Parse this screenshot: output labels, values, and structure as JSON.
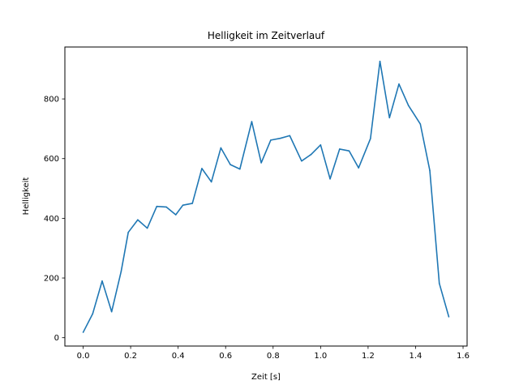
{
  "colors": {
    "line": "#1f77b4",
    "axes": "#000000",
    "background": "#ffffff"
  },
  "chart_data": {
    "type": "line",
    "title": "Helligkeit im Zeitverlauf",
    "xlabel": "Zeit [s]",
    "ylabel": "Helligkeit",
    "xlim": [
      -0.077,
      1.617
    ],
    "ylim": [
      -28,
      974
    ],
    "grid": false,
    "legend": "none",
    "xticks": [
      0.0,
      0.2,
      0.4,
      0.6,
      0.8,
      1.0,
      1.2,
      1.4,
      1.6
    ],
    "xtick_labels": [
      "0.0",
      "0.2",
      "0.4",
      "0.6",
      "0.8",
      "1.0",
      "1.2",
      "1.4",
      "1.6"
    ],
    "yticks": [
      0,
      200,
      400,
      600,
      800
    ],
    "ytick_labels": [
      "0",
      "200",
      "400",
      "600",
      "800"
    ],
    "series": [
      {
        "x": [
          0.0,
          0.04,
          0.08,
          0.12,
          0.16,
          0.19,
          0.23,
          0.27,
          0.31,
          0.35,
          0.39,
          0.42,
          0.46,
          0.5,
          0.54,
          0.58,
          0.62,
          0.66,
          0.71,
          0.75,
          0.79,
          0.83,
          0.87,
          0.92,
          0.96,
          1.0,
          1.04,
          1.08,
          1.12,
          1.16,
          1.21,
          1.25,
          1.29,
          1.33,
          1.37,
          1.42,
          1.46,
          1.5,
          1.54
        ],
        "values": [
          18,
          80,
          190,
          87,
          222,
          353,
          395,
          367,
          440,
          438,
          412,
          444,
          450,
          567,
          522,
          636,
          580,
          565,
          724,
          586,
          662,
          668,
          677,
          592,
          614,
          646,
          532,
          632,
          626,
          569,
          667,
          926,
          737,
          850,
          778,
          716,
          560,
          182,
          70
        ]
      }
    ]
  }
}
